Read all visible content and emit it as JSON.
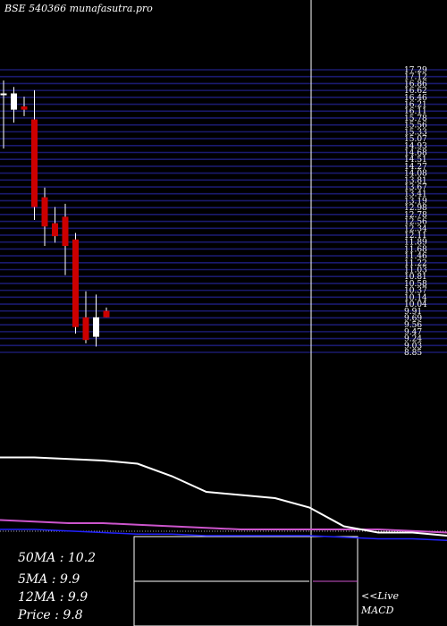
{
  "header": {
    "title": "BSE 540366  munafasutra.pro"
  },
  "chart_data": {
    "type": "candlestick",
    "title": "BSE 540366  munafasutra.pro",
    "price_axis": {
      "ylim": [
        8.72,
        17.43
      ],
      "tick_labels": [
        "17.29",
        "17.12",
        "16.86",
        "16.62",
        "16.46",
        "16.21",
        "16.11",
        "15.78",
        "15.56",
        "15.33",
        "15.07",
        "14.93",
        "14.68",
        "14.51",
        "14.27",
        "14.08",
        "13.81",
        "13.67",
        "13.41",
        "13.19",
        "12.98",
        "12.78",
        "12.56",
        "12.34",
        "12.11",
        "11.89",
        "11.68",
        "11.46",
        "11.22",
        "11.03",
        "10.81",
        "10.58",
        "10.37",
        "10.14",
        "10.04",
        "9.91",
        "9.69",
        "9.56",
        "9.47",
        "9.24",
        "9.03",
        "8.85"
      ]
    },
    "candles": [
      {
        "open": 16.7,
        "high": 17.1,
        "low": 15.0,
        "close": 16.7
      },
      {
        "open": 16.2,
        "high": 16.9,
        "low": 15.8,
        "close": 16.7
      },
      {
        "open": 16.3,
        "high": 16.6,
        "low": 16.0,
        "close": 16.2
      },
      {
        "open": 15.9,
        "high": 16.8,
        "low": 12.8,
        "close": 13.2
      },
      {
        "open": 13.5,
        "high": 13.8,
        "low": 12.0,
        "close": 12.6
      },
      {
        "open": 12.7,
        "high": 13.2,
        "low": 12.1,
        "close": 12.3
      },
      {
        "open": 12.9,
        "high": 13.3,
        "low": 11.1,
        "close": 12.0
      },
      {
        "open": 12.2,
        "high": 12.4,
        "low": 9.3,
        "close": 9.5
      },
      {
        "open": 9.8,
        "high": 10.6,
        "low": 9.0,
        "close": 9.1
      },
      {
        "open": 9.2,
        "high": 10.5,
        "low": 8.9,
        "close": 9.8
      },
      {
        "open": 10.0,
        "high": 10.1,
        "low": 9.8,
        "close": 9.8
      }
    ],
    "indicators": {
      "ma_white": [
        5.6,
        5.6,
        5.55,
        5.5,
        5.4,
        5.0,
        4.5,
        4.4,
        4.3,
        4.0,
        3.4,
        3.2,
        3.2,
        3.1
      ],
      "ma_magenta": [
        3.6,
        3.55,
        3.5,
        3.5,
        3.45,
        3.4,
        3.35,
        3.3,
        3.3,
        3.3,
        3.3,
        3.3,
        3.25,
        3.2
      ],
      "ma_blue": [
        3.3,
        3.3,
        3.25,
        3.2,
        3.15,
        3.15,
        3.1,
        3.1,
        3.1,
        3.1,
        3.05,
        3.0,
        3.0,
        2.95
      ]
    },
    "readouts": [
      {
        "label": "50MA",
        "value": "10.2"
      },
      {
        "label": "5MA",
        "value": "9.9"
      },
      {
        "label": "12MA",
        "value": "9.9"
      },
      {
        "label": "Price",
        "value": "9.8"
      }
    ],
    "annotation": {
      "line1": "<<Live",
      "line2": "MACD"
    },
    "colors": {
      "background": "#000000",
      "grid": "#1a1a6e",
      "down_candle": "#cc0000",
      "up_candle": "#ffffff",
      "wick": "#ffffff",
      "ma_white": "#ffffff",
      "ma_magenta": "#cc55cc",
      "ma_blue": "#2222ff"
    }
  }
}
